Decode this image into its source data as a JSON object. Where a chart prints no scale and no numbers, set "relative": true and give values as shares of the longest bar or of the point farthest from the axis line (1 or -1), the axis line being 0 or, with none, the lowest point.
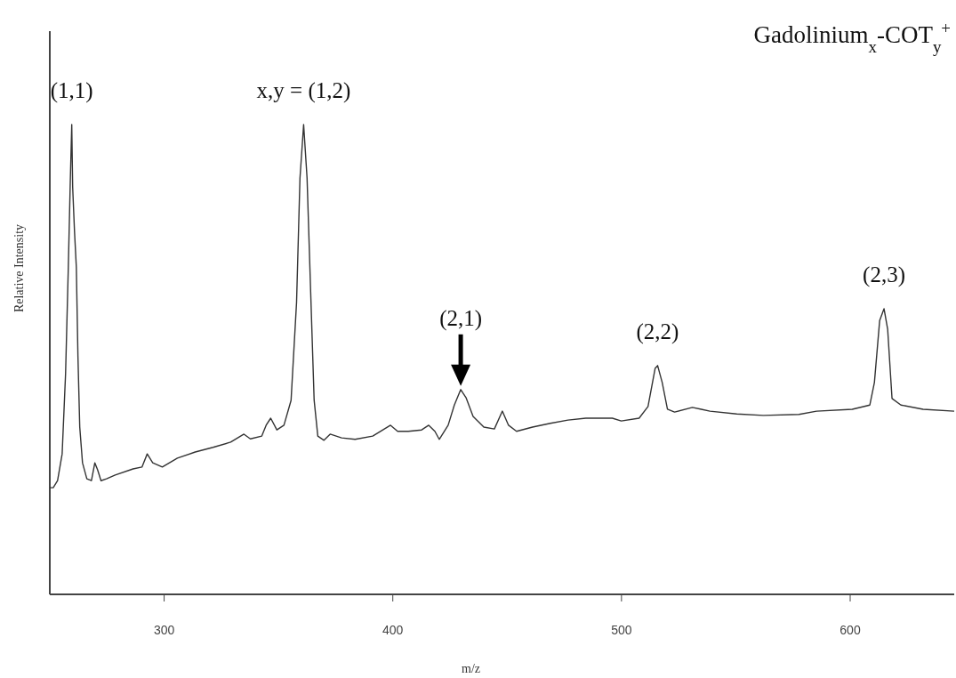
{
  "chart_data": {
    "type": "line",
    "title": "Gadolinium$_{x}$-COT$_{y}$$^{+}$",
    "xlabel": "m/z",
    "ylabel": "Relative Intensity",
    "relative": true,
    "xlim": [
      250,
      645.5
    ],
    "xticks": [
      300,
      400,
      500,
      600
    ],
    "grid": false,
    "marker": "none",
    "line_style": "solid",
    "annotations": [
      {
        "text": "(1,1)",
        "x": 259.6,
        "y": 1
      },
      {
        "text": "x,y = (1,2)",
        "x": 361.0,
        "y": 1
      },
      {
        "text": "(2,1)",
        "x": 429.7,
        "y": 0.436
      },
      {
        "text": "(2,2)",
        "x": 515.8,
        "y": 0.487
      },
      {
        "text": "(2,3)",
        "x": 614.8,
        "y": 0.608
      }
    ],
    "series": [
      {
        "color": "#333333",
        "x": [
          250,
          251.5,
          253.4,
          255.4,
          256.9,
          258.1,
          258.9,
          259.6,
          260.0,
          260.8,
          261.6,
          262.3,
          263.1,
          264.3,
          266.2,
          268.2,
          269.7,
          270.9,
          272.4,
          274.8,
          278.6,
          286.4,
          290.3,
          292.6,
          295.0,
          299.2,
          305.8,
          313.6,
          321.4,
          329.1,
          334.9,
          337.7,
          342.7,
          344.6,
          346.6,
          349.3,
          352.4,
          355.5,
          357.9,
          359.4,
          361.0,
          362.5,
          364.1,
          365.6,
          367.2,
          369.9,
          372.6,
          377.6,
          383.5,
          391.2,
          399.0,
          402.1,
          406.8,
          412.6,
          415.7,
          418.4,
          420.3,
          424.2,
          426.9,
          429.7,
          432.0,
          435.1,
          439.8,
          444.4,
          447.9,
          450.6,
          454.1,
          461.1,
          468.9,
          476.6,
          484.4,
          496.0,
          499.9,
          507.7,
          511.6,
          514.7,
          515.8,
          517.8,
          520.1,
          523.2,
          531.0,
          534.9,
          538.7,
          550.4,
          562.0,
          577.6,
          585.3,
          600.9,
          608.6,
          610.6,
          612.9,
          614.8,
          616.4,
          618.3,
          622.2,
          631.9,
          645.5
        ],
        "values": [
          0.227,
          0.227,
          0.242,
          0.299,
          0.47,
          0.697,
          0.867,
          1,
          0.867,
          0.773,
          0.697,
          0.508,
          0.356,
          0.28,
          0.246,
          0.242,
          0.28,
          0.265,
          0.242,
          0.246,
          0.254,
          0.267,
          0.271,
          0.299,
          0.28,
          0.271,
          0.29,
          0.303,
          0.313,
          0.324,
          0.341,
          0.331,
          0.337,
          0.36,
          0.375,
          0.35,
          0.36,
          0.413,
          0.621,
          0.886,
          1,
          0.886,
          0.64,
          0.413,
          0.337,
          0.328,
          0.341,
          0.333,
          0.33,
          0.337,
          0.36,
          0.347,
          0.347,
          0.35,
          0.36,
          0.347,
          0.33,
          0.36,
          0.403,
          0.436,
          0.419,
          0.379,
          0.356,
          0.352,
          0.39,
          0.36,
          0.347,
          0.356,
          0.364,
          0.371,
          0.375,
          0.375,
          0.369,
          0.375,
          0.4,
          0.481,
          0.487,
          0.451,
          0.394,
          0.388,
          0.398,
          0.394,
          0.39,
          0.384,
          0.381,
          0.383,
          0.39,
          0.394,
          0.403,
          0.451,
          0.583,
          0.608,
          0.564,
          0.417,
          0.403,
          0.394,
          0.39
        ]
      }
    ]
  }
}
